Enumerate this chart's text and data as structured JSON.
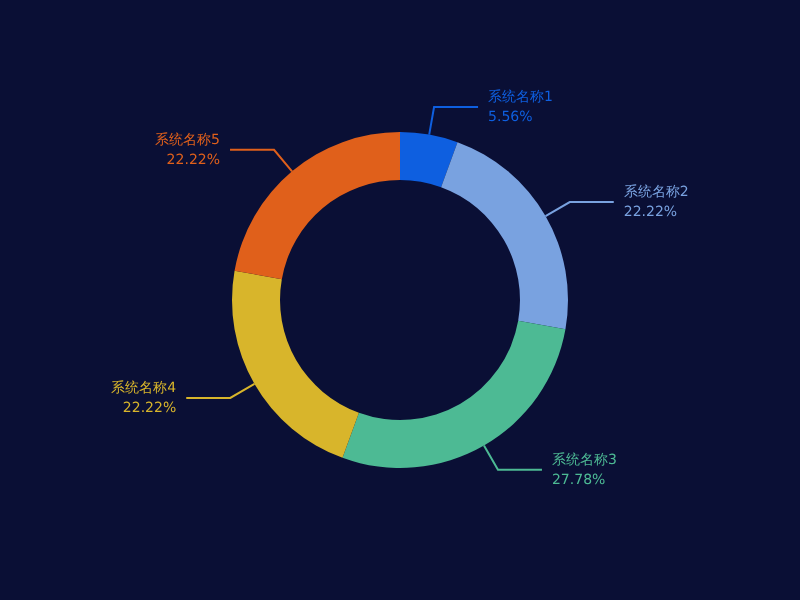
{
  "chart_data": {
    "type": "donut",
    "categories": [
      "系统名称1",
      "系统名称2",
      "系统名称3",
      "系统名称4",
      "系统名称5"
    ],
    "values": [
      5.56,
      22.22,
      27.78,
      22.22,
      22.22
    ],
    "colors": [
      "#0e5fe0",
      "#79a2e0",
      "#4dba94",
      "#d8b52b",
      "#e0601b"
    ],
    "value_labels": [
      "5.56%",
      "22.22%",
      "27.78%",
      "22.22%",
      "22.22%"
    ]
  }
}
